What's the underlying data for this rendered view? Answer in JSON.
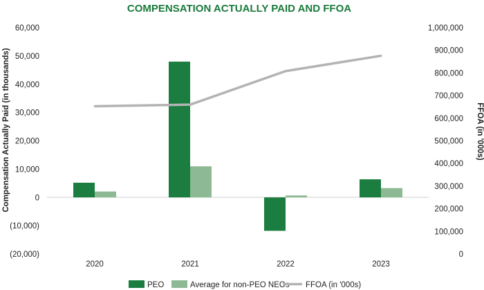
{
  "chart_data": {
    "type": "bar",
    "title": "COMPENSATION ACTUALLY PAID AND FFOA",
    "categories": [
      "2020",
      "2021",
      "2022",
      "2023"
    ],
    "ylabel": "Compensation Actually Paid (in thousands)",
    "y2label": "FFOA (in '000s)",
    "ylim": [
      -20000,
      60000
    ],
    "y2lim": [
      0,
      1000000
    ],
    "y_ticks": [
      {
        "value": 60000,
        "label": "60,000"
      },
      {
        "value": 50000,
        "label": "50,000"
      },
      {
        "value": 40000,
        "label": "40,000"
      },
      {
        "value": 30000,
        "label": "30,000"
      },
      {
        "value": 20000,
        "label": "20,000"
      },
      {
        "value": 10000,
        "label": "10,000"
      },
      {
        "value": 0,
        "label": "0"
      },
      {
        "value": -10000,
        "label": "(10,000)"
      },
      {
        "value": -20000,
        "label": "(20,000)"
      }
    ],
    "y2_ticks": [
      {
        "value": 1000000,
        "label": "1,000,000"
      },
      {
        "value": 900000,
        "label": "900,000"
      },
      {
        "value": 800000,
        "label": "800,000"
      },
      {
        "value": 700000,
        "label": "700,000"
      },
      {
        "value": 600000,
        "label": "600,000"
      },
      {
        "value": 500000,
        "label": "500,000"
      },
      {
        "value": 400000,
        "label": "400,000"
      },
      {
        "value": 300000,
        "label": "300,000"
      },
      {
        "value": 200000,
        "label": "200,000"
      },
      {
        "value": 100000,
        "label": "100,000"
      },
      {
        "value": 0,
        "label": "0"
      }
    ],
    "series": [
      {
        "name": "PEO",
        "kind": "bar",
        "axis": "left",
        "color": "#1b7d3f",
        "values": [
          5200,
          48000,
          -11800,
          6400
        ]
      },
      {
        "name": "Average for non-PEO NEOs",
        "kind": "bar",
        "axis": "left",
        "color": "#8db994",
        "values": [
          2100,
          11000,
          700,
          3300
        ]
      },
      {
        "name": "FFOA (in '000s)",
        "kind": "line",
        "axis": "right",
        "color": "#b3b3b3",
        "values": [
          653000,
          660000,
          808000,
          876000
        ]
      }
    ],
    "legend": "bottom-center"
  }
}
